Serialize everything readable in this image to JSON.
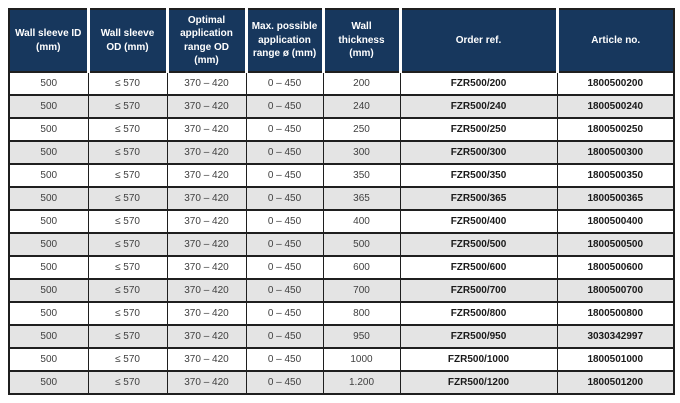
{
  "colors": {
    "header_background": "#17375d",
    "header_text": "#ffffff",
    "row_alt_background": "#e4e4e4",
    "row_background": "#ffffff",
    "border": "#1f1f1f",
    "body_text": "#404040",
    "bold_text": "#1a1a1a"
  },
  "table": {
    "columns": [
      {
        "key": "wall-sleeve-id",
        "label": "Wall sleeve ID (mm)"
      },
      {
        "key": "wall-sleeve-od",
        "label": "Wall sleeve OD (mm)"
      },
      {
        "key": "optimal-application-range-od",
        "label": "Optimal application range OD (mm)"
      },
      {
        "key": "max-possible-application-range",
        "label": "Max. possible application range ø (mm)"
      },
      {
        "key": "wall-thickness",
        "label": "Wall thickness (mm)"
      },
      {
        "key": "order-ref",
        "label": "Order ref."
      },
      {
        "key": "article-no",
        "label": "Article no."
      }
    ],
    "rows": [
      [
        "500",
        "≤ 570",
        "370 – 420",
        "0 – 450",
        "200",
        "FZR500/200",
        "1800500200"
      ],
      [
        "500",
        "≤ 570",
        "370 – 420",
        "0 – 450",
        "240",
        "FZR500/240",
        "1800500240"
      ],
      [
        "500",
        "≤ 570",
        "370 – 420",
        "0 – 450",
        "250",
        "FZR500/250",
        "1800500250"
      ],
      [
        "500",
        "≤ 570",
        "370 – 420",
        "0 – 450",
        "300",
        "FZR500/300",
        "1800500300"
      ],
      [
        "500",
        "≤ 570",
        "370 – 420",
        "0 – 450",
        "350",
        "FZR500/350",
        "1800500350"
      ],
      [
        "500",
        "≤ 570",
        "370 – 420",
        "0 – 450",
        "365",
        "FZR500/365",
        "1800500365"
      ],
      [
        "500",
        "≤ 570",
        "370 – 420",
        "0 – 450",
        "400",
        "FZR500/400",
        "1800500400"
      ],
      [
        "500",
        "≤ 570",
        "370 – 420",
        "0 – 450",
        "500",
        "FZR500/500",
        "1800500500"
      ],
      [
        "500",
        "≤ 570",
        "370 – 420",
        "0 – 450",
        "600",
        "FZR500/600",
        "1800500600"
      ],
      [
        "500",
        "≤ 570",
        "370 – 420",
        "0 – 450",
        "700",
        "FZR500/700",
        "1800500700"
      ],
      [
        "500",
        "≤ 570",
        "370 – 420",
        "0 – 450",
        "800",
        "FZR500/800",
        "1800500800"
      ],
      [
        "500",
        "≤ 570",
        "370 – 420",
        "0 – 450",
        "950",
        "FZR500/950",
        "3030342997"
      ],
      [
        "500",
        "≤ 570",
        "370 – 420",
        "0 – 450",
        "1000",
        "FZR500/1000",
        "1800501000"
      ],
      [
        "500",
        "≤ 570",
        "370 – 420",
        "0 – 450",
        "1.200",
        "FZR500/1200",
        "1800501200"
      ]
    ]
  }
}
